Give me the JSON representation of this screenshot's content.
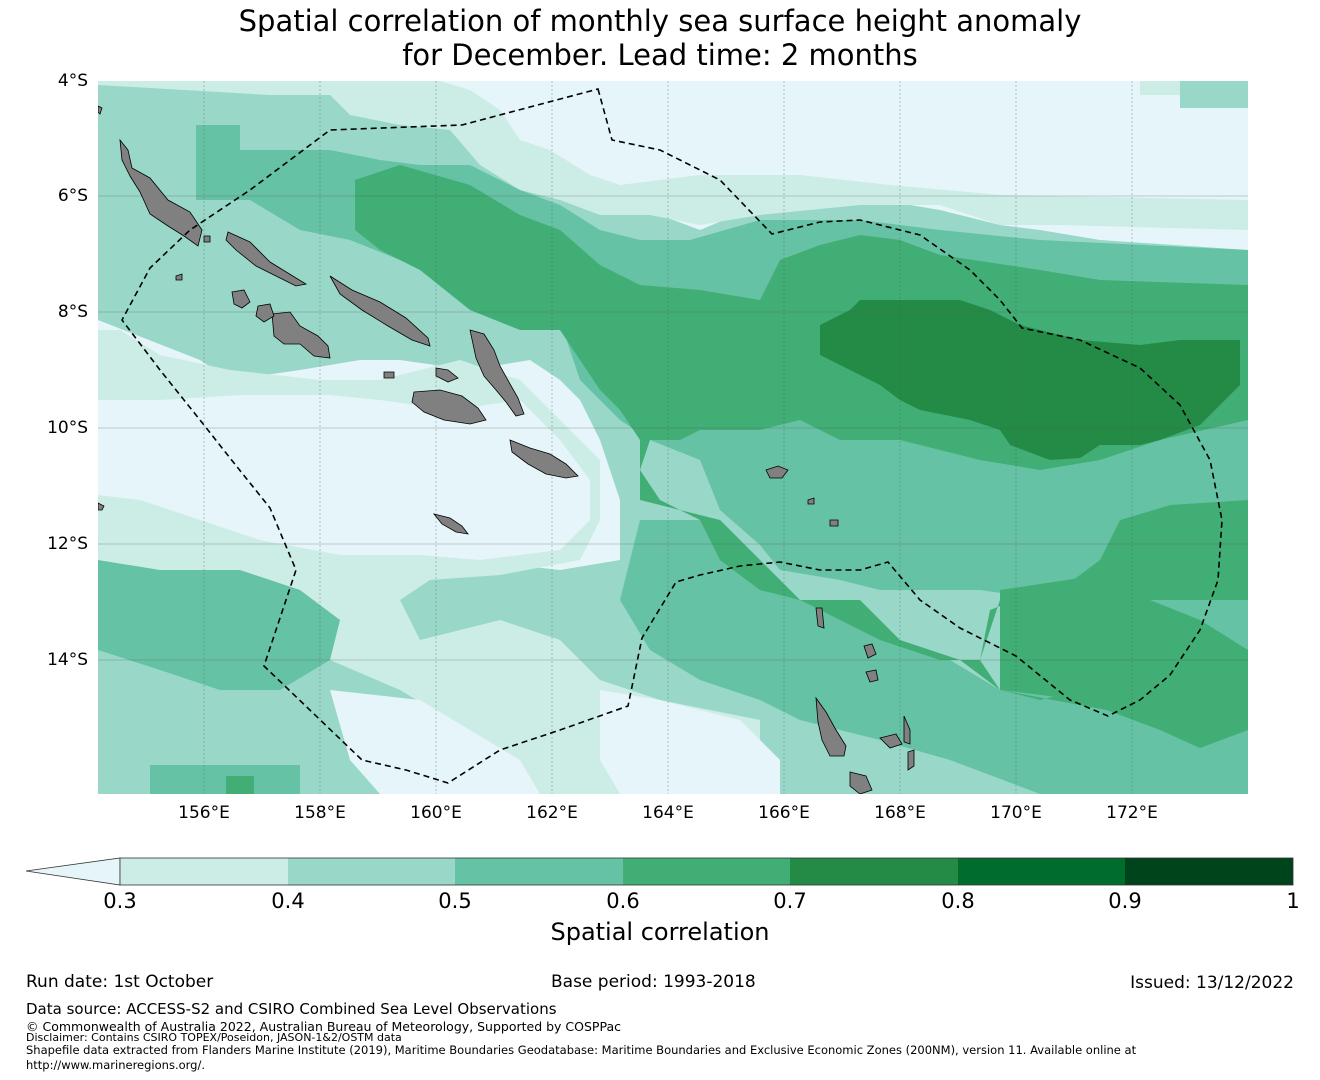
{
  "title_line1": "Spatial correlation of monthly sea surface height anomaly",
  "title_line2": "for December. Lead time: 2 months",
  "map": {
    "lat_labels": [
      "4°S",
      "6°S",
      "8°S",
      "10°S",
      "12°S",
      "14°S"
    ],
    "lon_labels": [
      "156°E",
      "158°E",
      "160°E",
      "162°E",
      "164°E",
      "166°E",
      "168°E",
      "170°E",
      "172°E"
    ],
    "lon_range": [
      154.2,
      174.0
    ],
    "lat_range": [
      -16.3,
      -4.0
    ],
    "land_color": "#808080",
    "boundary": "dashed"
  },
  "colorbar": {
    "title": "Spatial correlation",
    "ticks": [
      "0.3",
      "0.4",
      "0.5",
      "0.6",
      "0.7",
      "0.8",
      "0.9",
      "1"
    ],
    "colors": [
      "#e5f5f9",
      "#ccece6",
      "#99d8c9",
      "#66c2a4",
      "#41ae76",
      "#238b45",
      "#006d2c",
      "#00441b"
    ]
  },
  "footer": {
    "run_date": "Run date: 1st October",
    "base_period": "Base period: 1993-2018",
    "issued": "Issued: 13/12/2022",
    "data_source": "Data source: ACCESS-S2 and CSIRO Combined Sea Level Observations",
    "copyright": "© Commonwealth of Australia 2022, Australian Bureau of Meteorology, Supported by COSPPac",
    "disclaimer": "Disclaimer: Contains CSIRO TOPEX/Poseidon, JASON-1&2/OSTM data",
    "shapefile_line1": "Shapefile data extracted from Flanders Marine Institute (2019), Maritime Boundaries Geodatabase: Maritime Boundaries and Exclusive Economic Zones (200NM), version 11. Available online at",
    "shapefile_line2": "http://www.marineregions.org/."
  }
}
